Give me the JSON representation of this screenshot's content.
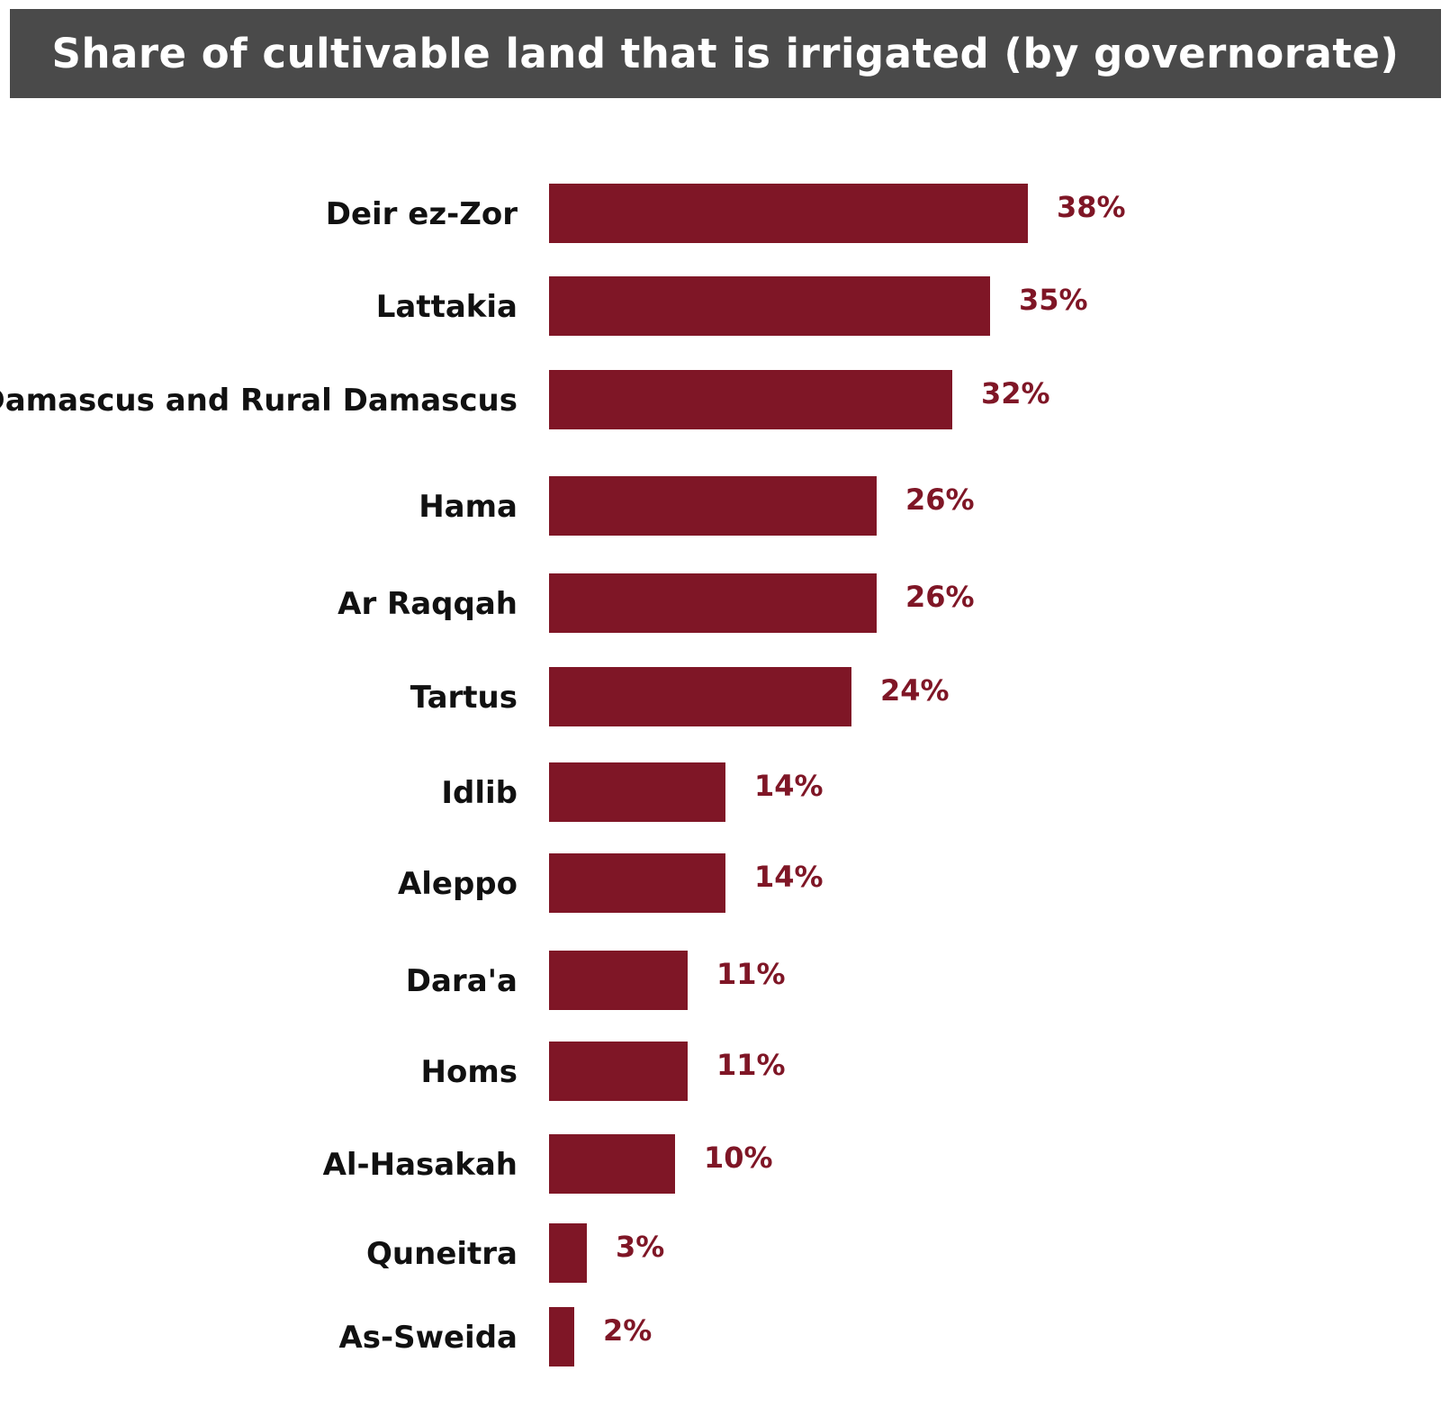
{
  "chart_data": {
    "type": "bar",
    "orientation": "horizontal",
    "title": "Share of cultivable land that is irrigated (by governorate)",
    "categories": [
      "Deir ez-Zor",
      "Lattakia",
      "Damascus and Rural Damascus",
      "Hama",
      "Ar Raqqah",
      "Tartus",
      "Idlib",
      "Aleppo",
      "Dara'a",
      "Homs",
      "Al-Hasakah",
      "Quneitra",
      "As-Sweida"
    ],
    "values": [
      38,
      35,
      32,
      26,
      26,
      24,
      14,
      14,
      11,
      11,
      10,
      3,
      2
    ],
    "data_labels": [
      "38%",
      "35%",
      "32%",
      "26%",
      "26%",
      "24%",
      "14%",
      "14%",
      "11%",
      "11%",
      "10%",
      "3%",
      "2%"
    ],
    "xlim": [
      0,
      38
    ],
    "grid": false,
    "legend": "none",
    "colors": {
      "bar": "#7f1626",
      "value_label": "#7f1626",
      "category_label": "#111111",
      "title_background": "#4a4a4a",
      "title_text": "#ffffff"
    }
  }
}
